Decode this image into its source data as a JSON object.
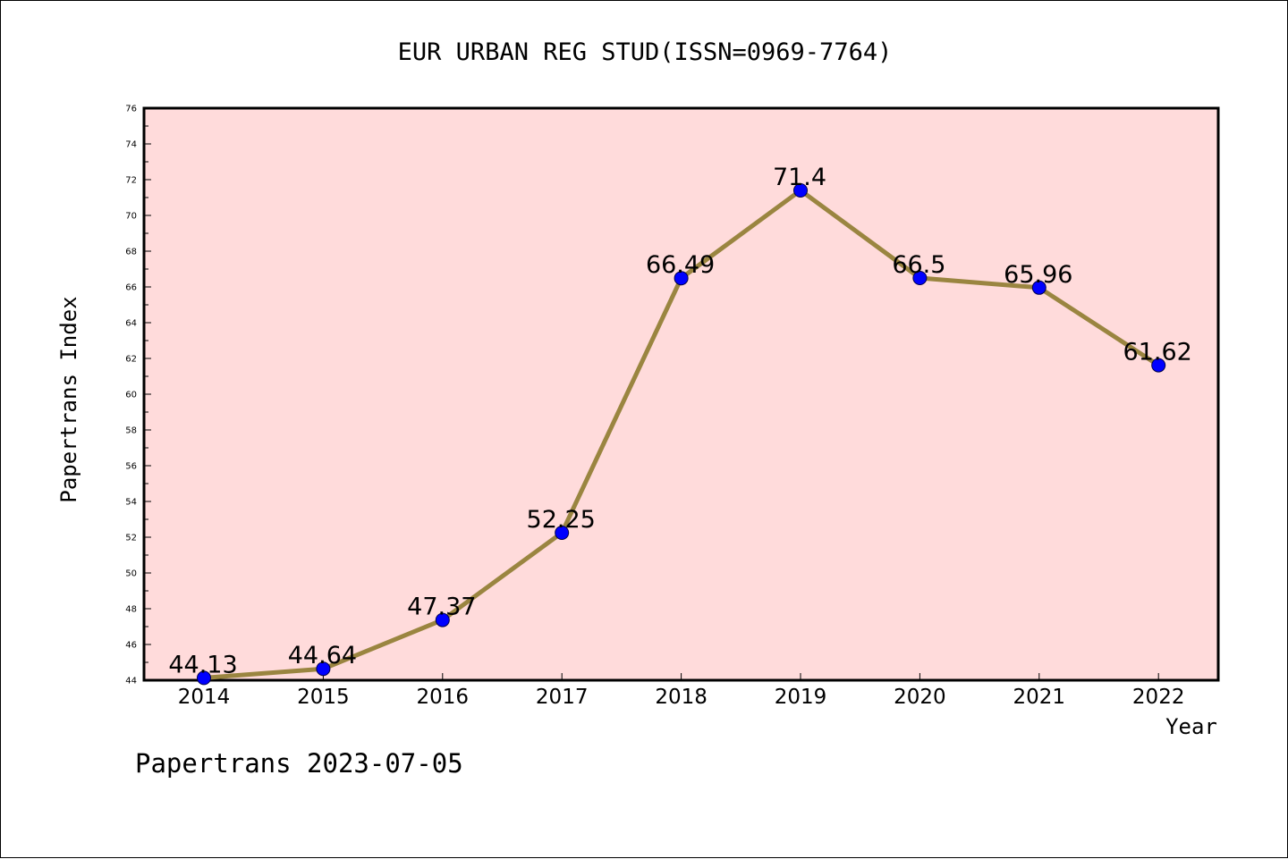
{
  "chart_data": {
    "type": "line",
    "title": "EUR URBAN REG STUD(ISSN=0969-7764)",
    "xlabel": "Year",
    "ylabel": "Papertrans Index",
    "footer": "Papertrans 2023-07-05",
    "categories": [
      "2014",
      "2015",
      "2016",
      "2017",
      "2018",
      "2019",
      "2020",
      "2021",
      "2022"
    ],
    "values": [
      44.13,
      44.64,
      47.37,
      52.25,
      66.49,
      71.4,
      66.5,
      65.96,
      61.62
    ],
    "data_labels": [
      "44.13",
      "44.64",
      "47.37",
      "52.25",
      "66.49",
      "71.4",
      "66.5",
      "65.96",
      "61.62"
    ],
    "ylim": [
      44,
      76
    ],
    "yticks": [
      "44",
      "46",
      "48",
      "50",
      "52",
      "54",
      "56",
      "58",
      "60",
      "62",
      "64",
      "66",
      "68",
      "70",
      "72",
      "74",
      "76"
    ],
    "grid": false,
    "legend": "none",
    "colors": {
      "plot_background": "#ffdbdb",
      "line": "#9a8540",
      "marker": "#0000ff",
      "axis": "#000000"
    }
  }
}
